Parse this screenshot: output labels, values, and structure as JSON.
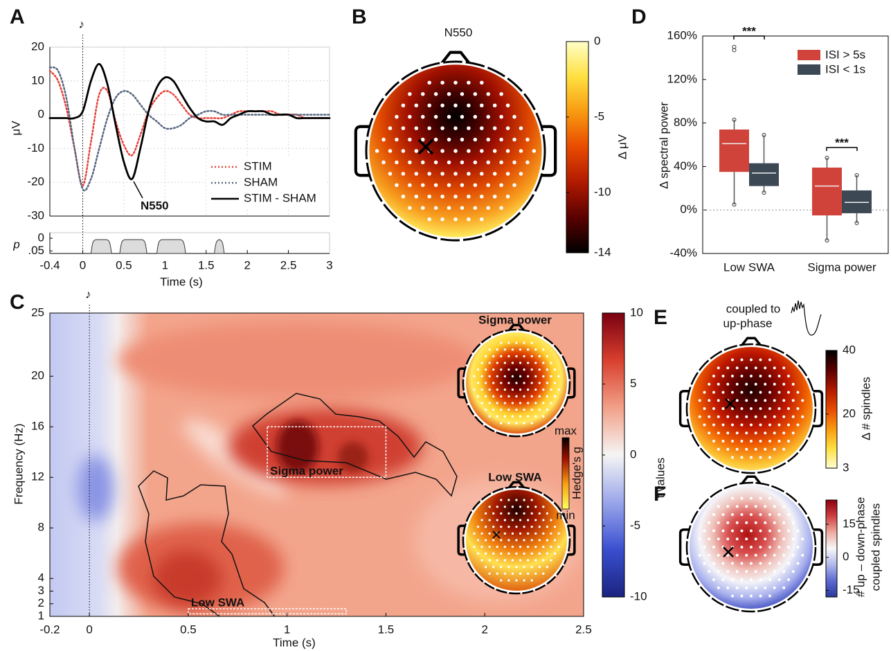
{
  "chart_data": [
    {
      "panel": "A",
      "type": "line",
      "ylabel": "μV",
      "xlabel": "Time (s)",
      "annotation": "N550",
      "stim_marker": "♪",
      "stim_onset": 0,
      "x": [
        -0.4,
        -0.3,
        -0.2,
        -0.1,
        0,
        0.1,
        0.2,
        0.3,
        0.4,
        0.5,
        0.6,
        0.7,
        0.8,
        0.9,
        1,
        1.1,
        1.2,
        1.3,
        1.4,
        1.5,
        1.6,
        1.7,
        1.8,
        1.9,
        2,
        2.1,
        2.2,
        2.3,
        2.4,
        2.5,
        2.6,
        2.7,
        2.8,
        2.9,
        3
      ],
      "xlim": [
        -0.4,
        3
      ],
      "xticks": [
        -0.4,
        0,
        0.5,
        1,
        1.5,
        2,
        2.5,
        3
      ],
      "ylim": [
        -30,
        20
      ],
      "yticks": [
        -30,
        -20,
        -10,
        0,
        10,
        20
      ],
      "grid": true,
      "series": [
        {
          "name": "STIM",
          "color": "#e8403a",
          "style": "dotted",
          "values": [
            13,
            10,
            2,
            -10,
            -21,
            -8,
            6,
            7,
            -2,
            -9,
            -12,
            -6,
            1,
            5,
            7,
            6,
            3,
            0,
            -1,
            -1,
            -1,
            -1,
            0,
            1,
            1,
            1,
            1,
            1,
            0,
            0,
            0,
            -1,
            -1,
            -1,
            -1
          ]
        },
        {
          "name": "SHAM",
          "color": "#56657f",
          "style": "dotted",
          "values": [
            14,
            13,
            5,
            -10,
            -22,
            -19,
            -10,
            -1,
            5,
            7,
            6,
            3,
            0,
            -2,
            -4,
            -4,
            -3,
            -1,
            0,
            1,
            1,
            0,
            0,
            0,
            0,
            0,
            0,
            0,
            0,
            0,
            0,
            0,
            0,
            0,
            0
          ]
        },
        {
          "name": "STIM - SHAM",
          "color": "#000000",
          "style": "solid",
          "values": [
            -1,
            -1,
            -1,
            -1,
            1,
            10,
            15,
            9,
            -3,
            -14,
            -19,
            -10,
            1,
            8,
            11,
            10,
            6,
            2,
            -1,
            -2,
            -2,
            -3,
            -1,
            0,
            1,
            1,
            1,
            0,
            0,
            0,
            -1,
            -1,
            -1,
            -1,
            -1
          ]
        }
      ],
      "p_panel": {
        "ylabel": "p",
        "ylim": [
          0,
          0.06
        ],
        "yticks": [
          0,
          {
            "value": 0.05,
            "label": ".05"
          }
        ],
        "clusters": [
          [
            0.1,
            0.35
          ],
          [
            0.45,
            0.78
          ],
          [
            0.9,
            1.25
          ],
          [
            1.6,
            1.72
          ]
        ]
      }
    },
    {
      "panel": "B",
      "type": "topoplot",
      "title": "N550",
      "colorbar_label": "Δ μV",
      "clim": [
        -14,
        0
      ],
      "cticks": [
        0,
        -5,
        -10,
        -14
      ],
      "colormap": [
        "#000000",
        "#5a0000",
        "#b01a00",
        "#e84a00",
        "#f89a10",
        "#ffe040",
        "#ffffc8"
      ]
    },
    {
      "panel": "C",
      "type": "heatmap",
      "ylabel": "Frequency (Hz)",
      "xlabel": "Time (s)",
      "stim_marker": "♪",
      "stim_onset": 0,
      "xlim": [
        -0.2,
        2.5
      ],
      "xticks": [
        -0.2,
        0,
        0.5,
        1,
        1.5,
        2,
        2.5
      ],
      "ylim": [
        1,
        25
      ],
      "yticks": [
        1,
        2,
        3,
        4,
        8,
        12,
        16,
        20,
        25
      ],
      "clim": [
        -10,
        10
      ],
      "cticks": [
        -10,
        -5,
        0,
        5,
        10
      ],
      "colorbar_label": "t values",
      "colormap": [
        "#1a237e",
        "#3a4fd0",
        "#9aa6ea",
        "#f5f5f5",
        "#f2a088",
        "#d8402e",
        "#7a0010"
      ],
      "rois": [
        {
          "label": "Sigma power",
          "x": [
            0.9,
            1.5
          ],
          "y": [
            12,
            16
          ]
        },
        {
          "label": "Low SWA",
          "x": [
            0.5,
            1.3
          ],
          "y": [
            1.2,
            1.6
          ]
        }
      ],
      "insets": [
        {
          "title": "Sigma power"
        },
        {
          "title": "Low SWA"
        }
      ],
      "inset_colorbar": {
        "label": "Hedge's g",
        "top": "max",
        "bottom": "min"
      }
    },
    {
      "panel": "D",
      "type": "box",
      "ylabel": "Δ spectral power",
      "categories": [
        "Low SWA",
        "Sigma power"
      ],
      "ylim": [
        -40,
        160
      ],
      "yticks": [
        {
          "value": -40,
          "label": "-40%"
        },
        {
          "value": 0,
          "label": "0%"
        },
        {
          "value": 40,
          "label": "40%"
        },
        {
          "value": 80,
          "label": "80%"
        },
        {
          "value": 120,
          "label": "120%"
        },
        {
          "value": 160,
          "label": "160%"
        }
      ],
      "zero_line": true,
      "series": [
        {
          "name": "ISI > 5s",
          "color": "#d0433a",
          "values": [
            {
              "min": 5,
              "q1": 35,
              "median": 61,
              "q3": 74,
              "max": 83,
              "outliers": [
                147,
                150
              ]
            },
            {
              "min": -28,
              "q1": -5,
              "median": 22,
              "q3": 39,
              "max": 48
            }
          ]
        },
        {
          "name": "ISI < 1s",
          "color": "#3c4854",
          "values": [
            {
              "min": 16,
              "q1": 22,
              "median": 34,
              "q3": 43,
              "max": 69
            },
            {
              "min": -12,
              "q1": -3,
              "median": 7,
              "q3": 18,
              "max": 32
            }
          ]
        }
      ],
      "significance": [
        "***",
        "***"
      ]
    },
    {
      "panel": "E",
      "type": "topoplot",
      "title": [
        "coupled to",
        "up-phase"
      ],
      "colorbar_label": "Δ # spindles",
      "clim": [
        3,
        40
      ],
      "cticks": [
        3,
        20,
        40
      ],
      "colormap": [
        "#ffffd0",
        "#ffe040",
        "#f89a10",
        "#e84a00",
        "#b01a00",
        "#5a0000",
        "#000000"
      ]
    },
    {
      "panel": "F",
      "type": "topoplot",
      "colorbar_label": [
        "# up – down-phase",
        "coupled spindles"
      ],
      "clim": [
        -18,
        26
      ],
      "cticks": [
        -15,
        0,
        15
      ],
      "colormap": [
        "#2a3a9a",
        "#5a6ad0",
        "#b0b8ea",
        "#f8f8f8",
        "#eeaaa0",
        "#d04040",
        "#8a0010"
      ]
    }
  ]
}
